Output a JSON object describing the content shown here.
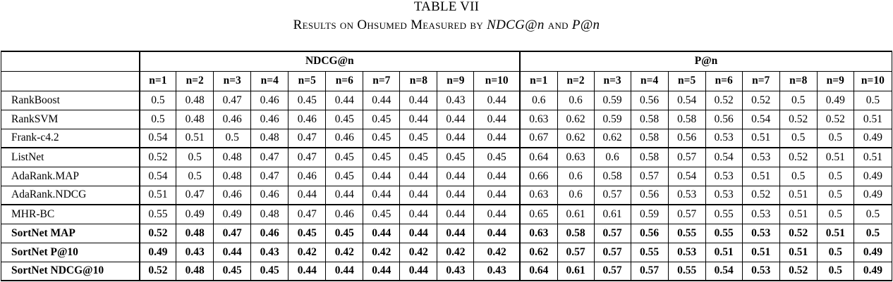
{
  "caption": {
    "label": "TABLE VII",
    "title_prefix": "Results on Ohsumed Measured by ",
    "metric1": "NDCG@n",
    "connector": " and ",
    "metric2": "P@n"
  },
  "table": {
    "group_headers": [
      "NDCG@n",
      "P@n"
    ],
    "column_headers": [
      "n=1",
      "n=2",
      "n=3",
      "n=4",
      "n=5",
      "n=6",
      "n=7",
      "n=8",
      "n=9",
      "n=10"
    ],
    "rows": [
      {
        "method": "RankBoost",
        "ndcg": [
          "0.5",
          "0.48",
          "0.47",
          "0.46",
          "0.45",
          "0.44",
          "0.44",
          "0.44",
          "0.43",
          "0.44"
        ],
        "p": [
          "0.6",
          "0.6",
          "0.59",
          "0.56",
          "0.54",
          "0.52",
          "0.52",
          "0.5",
          "0.49",
          "0.5"
        ]
      },
      {
        "method": "RankSVM",
        "ndcg": [
          "0.5",
          "0.48",
          "0.46",
          "0.46",
          "0.46",
          "0.45",
          "0.45",
          "0.44",
          "0.44",
          "0.44"
        ],
        "p": [
          "0.63",
          "0.62",
          "0.59",
          "0.58",
          "0.58",
          "0.56",
          "0.54",
          "0.52",
          "0.52",
          "0.51"
        ]
      },
      {
        "method": "Frank-c4.2",
        "ndcg": [
          "0.54",
          "0.51",
          "0.5",
          "0.48",
          "0.47",
          "0.46",
          "0.45",
          "0.45",
          "0.44",
          "0.44"
        ],
        "p": [
          "0.67",
          "0.62",
          "0.62",
          "0.58",
          "0.56",
          "0.53",
          "0.51",
          "0.5",
          "0.5",
          "0.49"
        ]
      },
      {
        "method": "ListNet",
        "ndcg": [
          "0.52",
          "0.5",
          "0.48",
          "0.47",
          "0.47",
          "0.45",
          "0.45",
          "0.45",
          "0.45",
          "0.45"
        ],
        "p": [
          "0.64",
          "0.63",
          "0.6",
          "0.58",
          "0.57",
          "0.54",
          "0.53",
          "0.52",
          "0.51",
          "0.51"
        ]
      },
      {
        "method": "AdaRank.MAP",
        "ndcg": [
          "0.54",
          "0.5",
          "0.48",
          "0.47",
          "0.46",
          "0.45",
          "0.44",
          "0.44",
          "0.44",
          "0.44"
        ],
        "p": [
          "0.66",
          "0.6",
          "0.58",
          "0.57",
          "0.54",
          "0.53",
          "0.51",
          "0.5",
          "0.5",
          "0.49"
        ]
      },
      {
        "method": "AdaRank.NDCG",
        "ndcg": [
          "0.51",
          "0.47",
          "0.46",
          "0.46",
          "0.44",
          "0.44",
          "0.44",
          "0.44",
          "0.44",
          "0.44"
        ],
        "p": [
          "0.63",
          "0.6",
          "0.57",
          "0.56",
          "0.53",
          "0.53",
          "0.52",
          "0.51",
          "0.5",
          "0.49"
        ]
      },
      {
        "method": "MHR-BC",
        "ndcg": [
          "0.55",
          "0.49",
          "0.49",
          "0.48",
          "0.47",
          "0.46",
          "0.45",
          "0.44",
          "0.44",
          "0.44"
        ],
        "p": [
          "0.65",
          "0.61",
          "0.61",
          "0.59",
          "0.57",
          "0.55",
          "0.53",
          "0.51",
          "0.5",
          "0.5"
        ]
      },
      {
        "method": "SortNet MAP",
        "ndcg": [
          "0.52",
          "0.48",
          "0.47",
          "0.46",
          "0.45",
          "0.45",
          "0.44",
          "0.44",
          "0.44",
          "0.44"
        ],
        "p": [
          "0.63",
          "0.58",
          "0.57",
          "0.56",
          "0.55",
          "0.55",
          "0.53",
          "0.52",
          "0.51",
          "0.5"
        ]
      },
      {
        "method": "SortNet P@10",
        "ndcg": [
          "0.49",
          "0.43",
          "0.44",
          "0.43",
          "0.42",
          "0.42",
          "0.42",
          "0.42",
          "0.42",
          "0.42"
        ],
        "p": [
          "0.62",
          "0.57",
          "0.57",
          "0.55",
          "0.53",
          "0.51",
          "0.51",
          "0.51",
          "0.5",
          "0.49"
        ]
      },
      {
        "method": "SortNet NDCG@10",
        "ndcg": [
          "0.52",
          "0.48",
          "0.45",
          "0.45",
          "0.44",
          "0.44",
          "0.44",
          "0.44",
          "0.43",
          "0.43"
        ],
        "p": [
          "0.64",
          "0.61",
          "0.57",
          "0.57",
          "0.55",
          "0.54",
          "0.53",
          "0.52",
          "0.5",
          "0.49"
        ]
      }
    ]
  }
}
